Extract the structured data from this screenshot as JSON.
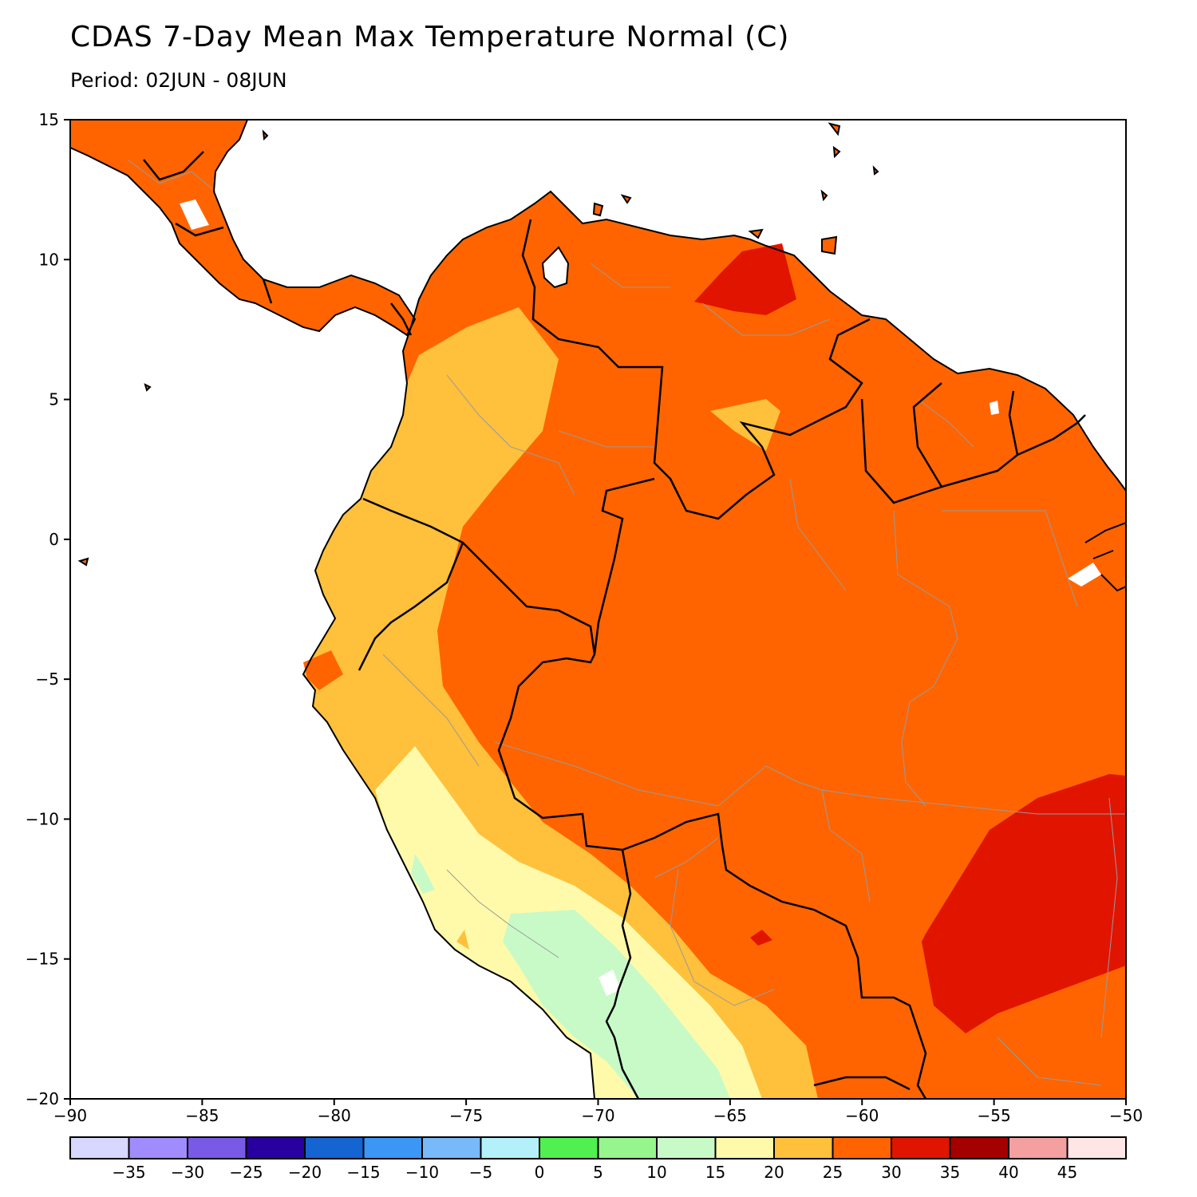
{
  "header": {
    "title": "CDAS 7-Day Mean Max Temperature Normal (C)",
    "period": "Period: 02JUN - 08JUN"
  },
  "map": {
    "lon_range": [
      -90,
      -50
    ],
    "lat_range": [
      -20,
      15
    ],
    "x_ticks": [
      "-90",
      "-85",
      "-80",
      "-75",
      "-70",
      "-65",
      "-60",
      "-55",
      "-50"
    ],
    "y_ticks": [
      "15",
      "10",
      "5",
      "0",
      "-5",
      "-10",
      "-15",
      "-20"
    ],
    "ocean_color": "#ffffff",
    "land_base_color": "#ff6400"
  },
  "legend": {
    "colors": [
      "#d7d7ff",
      "#a08cff",
      "#785ae6",
      "#2800a0",
      "#1464d2",
      "#3c96f5",
      "#78b9fa",
      "#b4f0fa",
      "#50f050",
      "#96f58c",
      "#c8fac8",
      "#fffaaa",
      "#ffc03c",
      "#ff6400",
      "#e11400",
      "#a50000",
      "#f5a0a0",
      "#ffe6e6"
    ],
    "labels": [
      "-35",
      "-30",
      "-25",
      "-20",
      "-15",
      "-10",
      "-5",
      "0",
      "5",
      "10",
      "15",
      "20",
      "25",
      "30",
      "35",
      "40",
      "45"
    ]
  }
}
